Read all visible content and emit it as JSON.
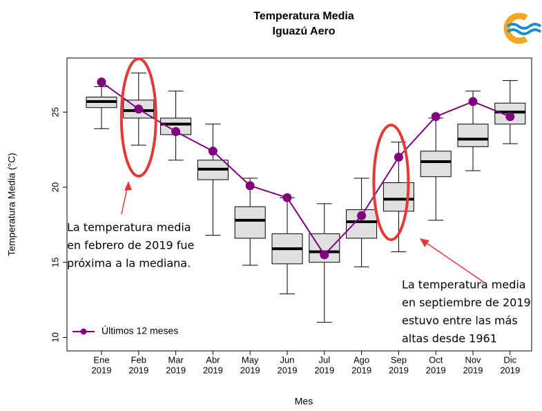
{
  "chart_data": {
    "type": "boxplot",
    "title": "Temperatura Media",
    "subtitle": "Iguazú Aero",
    "x_label": "Mes",
    "y_label": "Temperatura Media (°C)",
    "categories": [
      [
        "Ene",
        "2019"
      ],
      [
        "Feb",
        "2019"
      ],
      [
        "Mar",
        "2019"
      ],
      [
        "Abr",
        "2019"
      ],
      [
        "May",
        "2019"
      ],
      [
        "Jun",
        "2019"
      ],
      [
        "Jul",
        "2019"
      ],
      [
        "Ago",
        "2019"
      ],
      [
        "Sep",
        "2019"
      ],
      [
        "Oct",
        "2019"
      ],
      [
        "Nov",
        "2019"
      ],
      [
        "Dic",
        "2019"
      ]
    ],
    "boxes": {
      "whisker_low": [
        23.9,
        22.8,
        21.8,
        16.8,
        14.8,
        12.9,
        11.0,
        14.7,
        15.7,
        17.8,
        21.1,
        22.9
      ],
      "q1": [
        25.3,
        24.6,
        23.5,
        20.5,
        16.6,
        14.9,
        15.0,
        16.6,
        18.4,
        20.7,
        22.7,
        24.2
      ],
      "median": [
        25.7,
        25.1,
        24.2,
        21.2,
        17.8,
        15.9,
        15.7,
        17.7,
        19.2,
        21.7,
        23.2,
        25.0
      ],
      "q3": [
        26.0,
        25.8,
        24.6,
        21.8,
        18.7,
        16.9,
        16.9,
        18.5,
        20.3,
        22.4,
        24.2,
        25.6
      ],
      "whisker_high": [
        26.7,
        27.6,
        26.4,
        24.2,
        20.6,
        19.3,
        18.9,
        20.6,
        23.0,
        24.6,
        26.4,
        27.1
      ],
      "color": "#e0e0e0"
    },
    "series": [
      {
        "name": "Últimos 12 meses",
        "color": "#800080",
        "values": [
          27.0,
          25.2,
          23.7,
          22.4,
          20.1,
          19.3,
          15.5,
          18.1,
          22.0,
          24.7,
          25.7,
          24.7
        ]
      }
    ],
    "ylim": [
      9.1,
      28.6
    ],
    "yticks": [
      10,
      15,
      20,
      25
    ],
    "legend": "bottom-left",
    "annotations": [
      [
        "La temperatura media",
        "en febrero de 2019 fue",
        "próxima a la mediana."
      ],
      [
        "La temperatura media",
        "en septiembre de 2019",
        "estuvo entre las más",
        "altas desde 1961"
      ]
    ]
  }
}
